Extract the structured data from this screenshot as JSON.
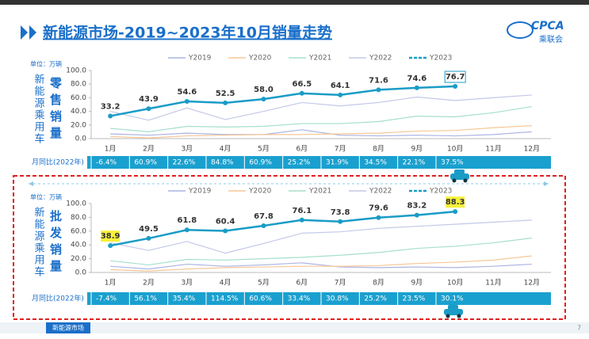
{
  "header": {
    "title": "新能源市场-2019~2023年10月销量走势",
    "logo": "CPCA",
    "logo_sub": "乘联会"
  },
  "chart_data": [
    {
      "type": "line",
      "title": "零售销量",
      "side_label": "新能源乘用车",
      "unit": "单位：万辆",
      "categories": [
        "1月",
        "2月",
        "3月",
        "4月",
        "5月",
        "6月",
        "7月",
        "8月",
        "9月",
        "10月",
        "11月",
        "12月"
      ],
      "series": [
        {
          "name": "Y2019",
          "color": "#aab4e2",
          "values": [
            7,
            5,
            8,
            6,
            6,
            13,
            5,
            4,
            5,
            4,
            6,
            10
          ]
        },
        {
          "name": "Y2020",
          "color": "#f6c796",
          "values": [
            3,
            1,
            4,
            5,
            6,
            6,
            7,
            8,
            11,
            12,
            16,
            19
          ]
        },
        {
          "name": "Y2021",
          "color": "#a6e0cc",
          "values": [
            15,
            10,
            18,
            17,
            18,
            22,
            22,
            25,
            33,
            32,
            38,
            47
          ]
        },
        {
          "name": "Y2022",
          "color": "#c3c8e8",
          "values": [
            40,
            27,
            45,
            28,
            40,
            53,
            48,
            53,
            61,
            56,
            60,
            64
          ]
        },
        {
          "name": "Y2023",
          "color": "#1a9cc6",
          "values": [
            33.2,
            43.9,
            54.6,
            52.5,
            58.0,
            66.5,
            64.1,
            71.6,
            74.6,
            76.7,
            null,
            null
          ],
          "value_labels": [
            "33.2",
            "43.9",
            "54.6",
            "52.5",
            "58.0",
            "66.5",
            "64.1",
            "71.6",
            "74.6",
            "76.7",
            null,
            null
          ],
          "markers": true
        }
      ],
      "ylim": [
        0,
        100
      ],
      "yticks": [
        {
          "value": 0,
          "label": "0.0"
        },
        {
          "value": 20,
          "label": "20.0"
        },
        {
          "value": 40,
          "label": "40.0"
        },
        {
          "value": 60,
          "label": "60.0"
        },
        {
          "value": 80,
          "label": "80.0"
        },
        {
          "value": 100,
          "label": "100.0"
        }
      ],
      "grid": false,
      "boxed_labels": [
        9
      ],
      "highlighted_labels": [],
      "yoy_title": "月同比(2022年)",
      "yoy_labels": [
        "-6.4%",
        "60.9%",
        "22.6%",
        "84.8%",
        "60.9%",
        "25.2%",
        "31.9%",
        "34.5%",
        "22.1%",
        "37.5%"
      ]
    },
    {
      "type": "line",
      "title": "批发销量",
      "side_label": "新能源乘用车",
      "unit": "单位：万辆",
      "categories": [
        "1月",
        "2月",
        "3月",
        "4月",
        "5月",
        "6月",
        "7月",
        "8月",
        "9月",
        "10月",
        "11月",
        "12月"
      ],
      "series": [
        {
          "name": "Y2019",
          "color": "#aab4e2",
          "values": [
            9,
            5,
            12,
            9,
            11,
            14,
            8,
            7,
            8,
            7,
            9,
            12
          ]
        },
        {
          "name": "Y2020",
          "color": "#f6c796",
          "values": [
            4,
            2,
            5,
            7,
            8,
            9,
            9,
            10,
            13,
            15,
            18,
            24
          ]
        },
        {
          "name": "Y2021",
          "color": "#a6e0cc",
          "values": [
            17,
            11,
            19,
            18,
            20,
            22,
            25,
            29,
            35,
            38,
            43,
            50
          ]
        },
        {
          "name": "Y2022",
          "color": "#c3c8e8",
          "values": [
            43,
            32,
            45,
            28,
            42,
            57,
            59,
            64,
            67,
            70,
            73,
            76
          ]
        },
        {
          "name": "Y2023",
          "color": "#1a9cc6",
          "values": [
            38.9,
            49.5,
            61.8,
            60.4,
            67.8,
            76.1,
            73.8,
            79.6,
            83.2,
            88.3,
            null,
            null
          ],
          "value_labels": [
            "38.9",
            "49.5",
            "61.8",
            "60.4",
            "67.8",
            "76.1",
            "73.8",
            "79.6",
            "83.2",
            "88.3",
            null,
            null
          ],
          "markers": true
        }
      ],
      "ylim": [
        0,
        100
      ],
      "yticks": [
        {
          "value": 0,
          "label": "0.0"
        },
        {
          "value": 20,
          "label": "20.0"
        },
        {
          "value": 40,
          "label": "40.0"
        },
        {
          "value": 60,
          "label": "60.0"
        },
        {
          "value": 80,
          "label": "80.0"
        },
        {
          "value": 100,
          "label": "100.0"
        }
      ],
      "grid": false,
      "boxed_labels": [],
      "highlighted_labels": [
        0,
        9
      ],
      "yoy_title": "月同比(2022年)",
      "yoy_labels": [
        "-7.4%",
        "56.1%",
        "35.4%",
        "114.5%",
        "60.6%",
        "33.4%",
        "30.8%",
        "25.2%",
        "23.5%",
        "30.1%"
      ]
    }
  ],
  "footer": {
    "tab": "新能源市场",
    "page": "7"
  }
}
